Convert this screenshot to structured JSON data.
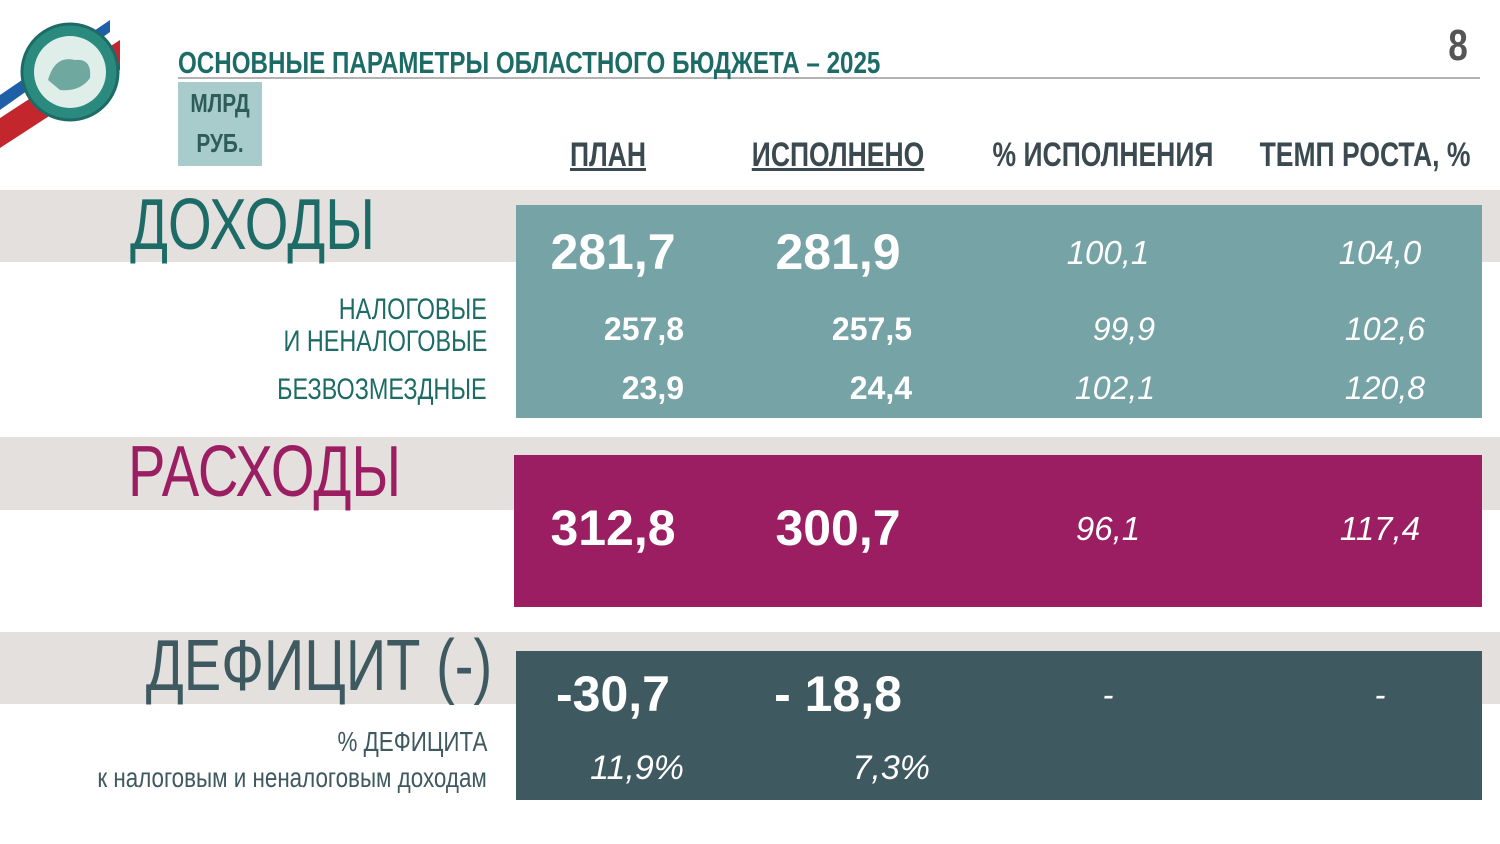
{
  "page_number": "8",
  "title": "ОСНОВНЫЕ  ПАРАМЕТРЫ  ОБЛАСТНОГО  БЮДЖЕТА – 2025",
  "unit": [
    "МЛРД",
    "РУБ."
  ],
  "columns": [
    "ПЛАН",
    "ИСПОЛНЕНО",
    "% ИСПОЛНЕНИЯ",
    "ТЕМП РОСТА, %"
  ],
  "income": {
    "label": "ДОХОДЫ",
    "values": [
      "281,7",
      "281,9",
      "100,1",
      "104,0"
    ],
    "rows": [
      {
        "label": [
          "НАЛОГОВЫЕ",
          "И НЕНАЛОГОВЫЕ"
        ],
        "values": [
          "257,8",
          "257,5",
          "99,9",
          "102,6"
        ]
      },
      {
        "label": [
          "БЕЗВОЗМЕЗДНЫЕ"
        ],
        "values": [
          "23,9",
          "24,4",
          "102,1",
          "120,8"
        ]
      }
    ]
  },
  "expenses": {
    "label": "РАСХОДЫ",
    "values": [
      "312,8",
      "300,7",
      "96,1",
      "117,4"
    ]
  },
  "deficit": {
    "label": "ДЕФИЦИТ (-)",
    "values": [
      "-30,7",
      "- 18,8",
      "-",
      "-"
    ],
    "rows": [
      {
        "label": [
          "% ДЕФИЦИТА",
          "к налоговым  и неналоговым доходам"
        ],
        "values": [
          "11,9%",
          "7,3%"
        ]
      }
    ]
  }
}
